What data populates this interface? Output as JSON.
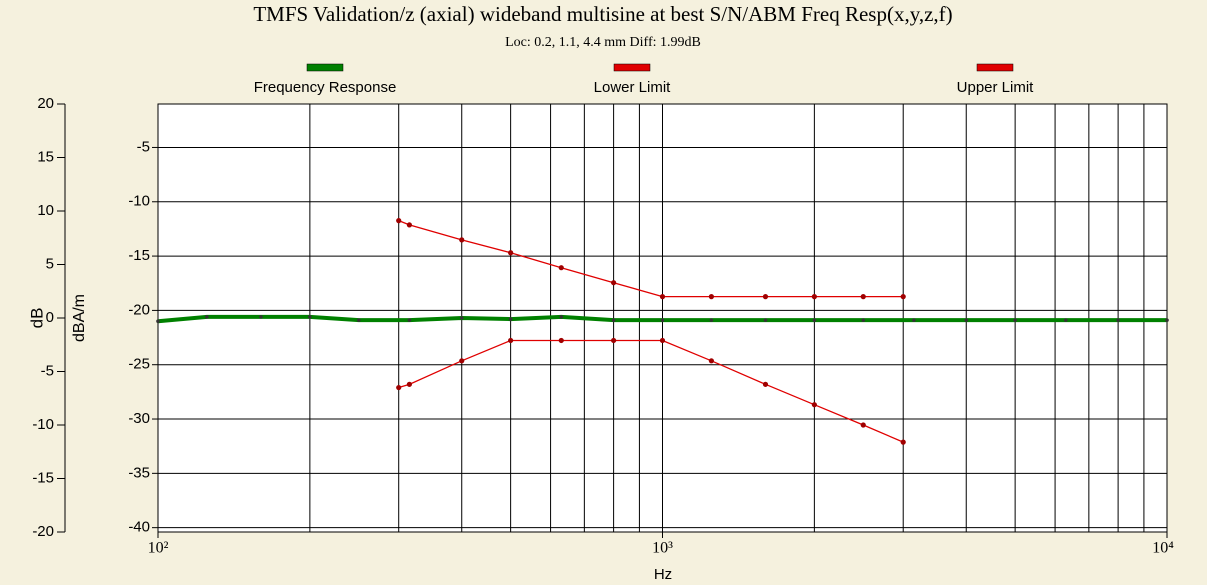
{
  "chart_data": {
    "type": "line",
    "title": "TMFS Validation/z (axial) wideband multisine at best S/N/ABM Freq Resp(x,y,z,f)",
    "subtitle": "Loc: 0.2, 1.1, 4.4 mm Diff: 1.99dB",
    "xlabel": "Hz",
    "ylabel": "dB",
    "y2label": "dBA/m",
    "xscale": "log",
    "xlim": [
      100,
      10000
    ],
    "xticks": [
      {
        "value": 100,
        "label": "10²"
      },
      {
        "value": 1000,
        "label": "10³"
      },
      {
        "value": 10000,
        "label": "10⁴"
      }
    ],
    "x_minor_ticks": [
      200,
      300,
      400,
      500,
      600,
      700,
      800,
      900,
      2000,
      3000,
      4000,
      5000,
      6000,
      7000,
      8000,
      9000
    ],
    "ylim": [
      -20,
      20
    ],
    "yticks": [
      -20,
      -15,
      -10,
      -5,
      0,
      5,
      10,
      15,
      20
    ],
    "y2lim": [
      -40.4,
      -1
    ],
    "y2ticks": [
      -40,
      -35,
      -30,
      -25,
      -20,
      -15,
      -10,
      -5
    ],
    "grid": true,
    "legend": "top",
    "series": [
      {
        "name": "Frequency Response",
        "color": "#008000",
        "x": [
          100,
          125,
          160,
          200,
          250,
          315,
          400,
          500,
          630,
          800,
          1000,
          1250,
          1600,
          2000,
          2500,
          3150,
          4000,
          5000,
          6300,
          8000,
          10000
        ],
        "values": [
          -0.3,
          0.1,
          0.1,
          0.1,
          -0.2,
          -0.2,
          0.0,
          -0.1,
          0.1,
          -0.2,
          -0.2,
          -0.2,
          -0.2,
          -0.2,
          -0.2,
          -0.2,
          -0.2,
          -0.2,
          -0.2,
          -0.2,
          -0.2
        ]
      },
      {
        "name": "Lower Limit",
        "color": "#e00000",
        "x": [
          300,
          315,
          400,
          500,
          630,
          800,
          1000,
          1250,
          1600,
          2000,
          2500,
          3000
        ],
        "values": [
          -6.5,
          -6.2,
          -4.0,
          -2.1,
          -2.1,
          -2.1,
          -2.1,
          -4.0,
          -6.2,
          -8.1,
          -10.0,
          -11.6
        ]
      },
      {
        "name": "Upper Limit",
        "color": "#e00000",
        "x": [
          300,
          315,
          400,
          500,
          630,
          800,
          1000,
          1250,
          1600,
          2000,
          2500,
          3000
        ],
        "values": [
          9.1,
          8.7,
          7.3,
          6.1,
          4.7,
          3.3,
          2.0,
          2.0,
          2.0,
          2.0,
          2.0,
          2.0
        ]
      }
    ]
  }
}
